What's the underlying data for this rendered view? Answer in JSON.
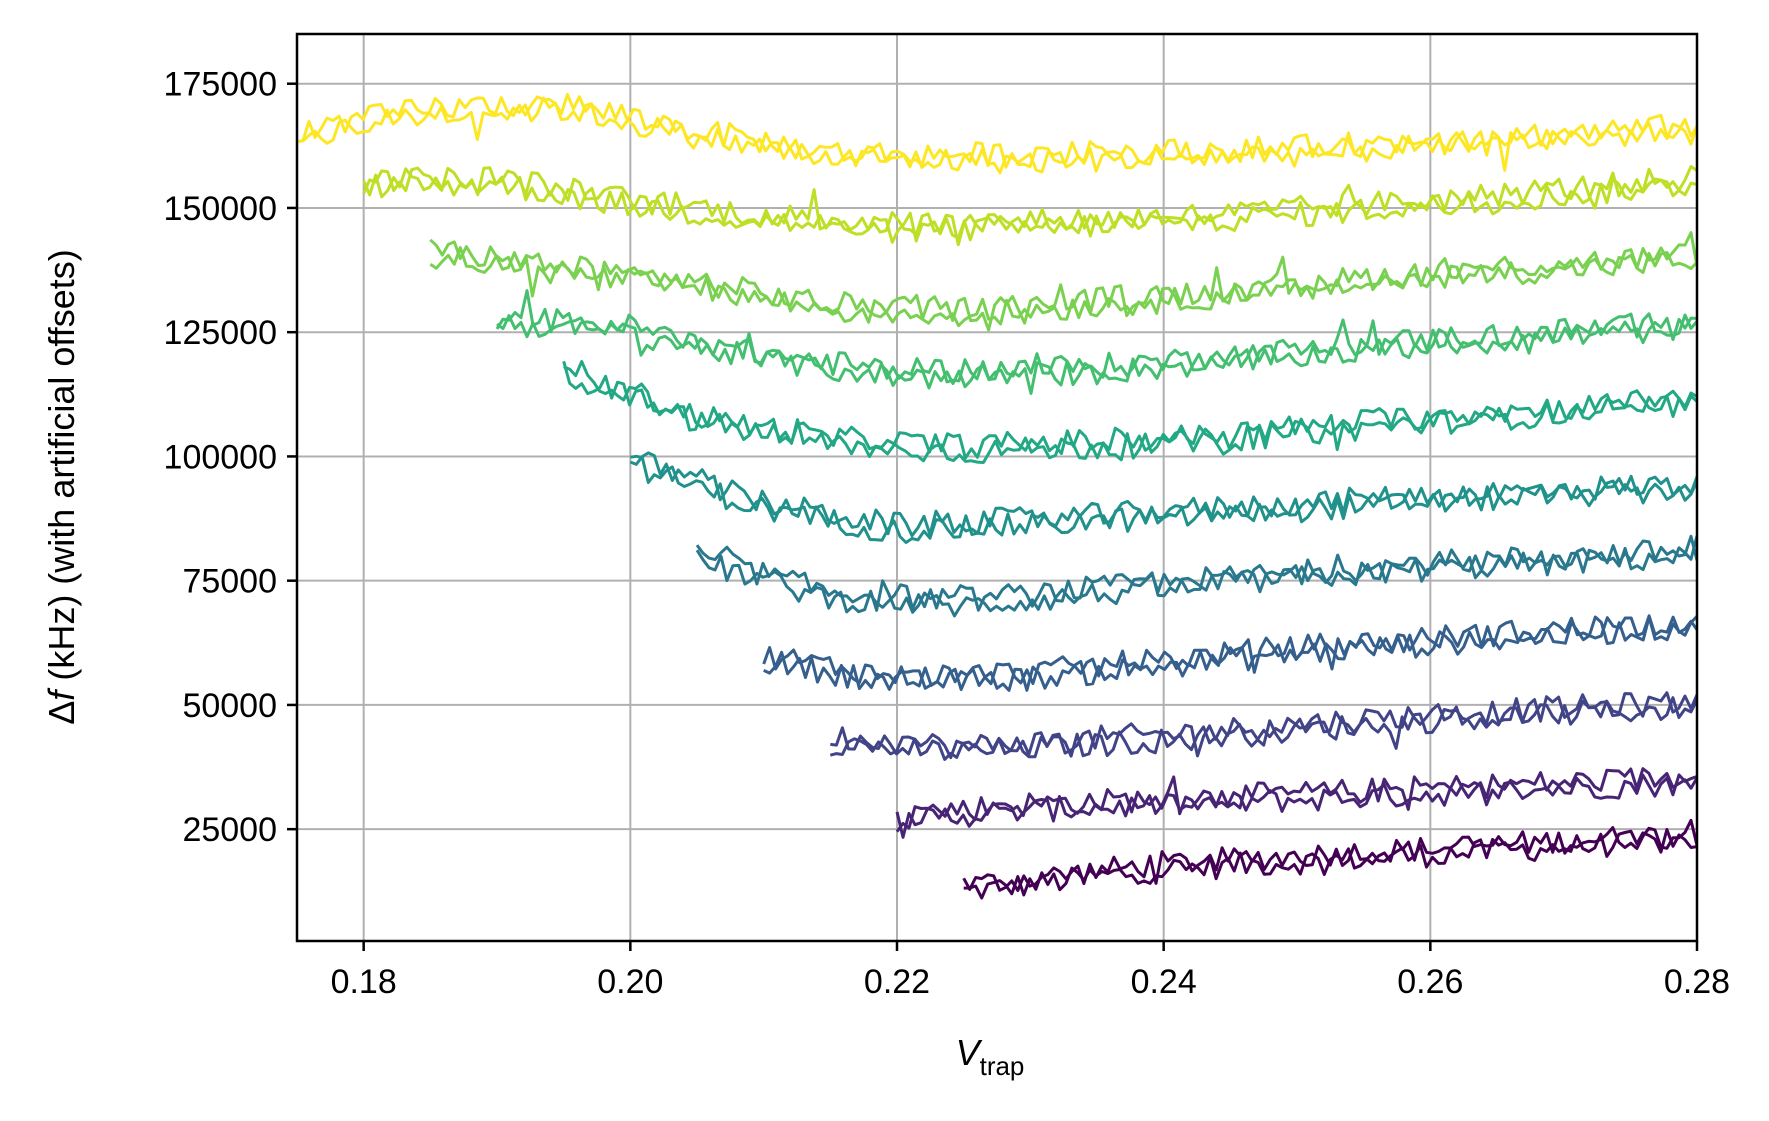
{
  "chart_data": {
    "type": "line",
    "xlabel_main": "V",
    "xlabel_sub": "trap",
    "ylabel_delta": "Δ",
    "ylabel_f": "f",
    "ylabel_rest": " (kHz) (with artificial offsets)",
    "xlim": [
      0.175,
      0.28
    ],
    "ylim": [
      2500,
      185000
    ],
    "x_ticks": [
      0.18,
      0.2,
      0.22,
      0.24,
      0.26,
      0.28
    ],
    "x_tick_labels": [
      "0.18",
      "0.20",
      "0.22",
      "0.24",
      "0.26",
      "0.28"
    ],
    "y_ticks": [
      25000,
      50000,
      75000,
      100000,
      125000,
      150000,
      175000
    ],
    "y_tick_labels": [
      "25000",
      "50000",
      "75000",
      "100000",
      "125000",
      "150000",
      "175000"
    ],
    "grid": true,
    "legend": "none",
    "noise_amplitude": 2500,
    "series": [
      {
        "color": "#440154",
        "x": [
          0.225,
          0.24,
          0.26,
          0.28
        ],
        "y": [
          13000,
          17500,
          20500,
          23500
        ]
      },
      {
        "color": "#482475",
        "x": [
          0.22,
          0.23,
          0.25,
          0.28
        ],
        "y": [
          27500,
          29500,
          31500,
          35000
        ]
      },
      {
        "color": "#414487",
        "x": [
          0.215,
          0.225,
          0.24,
          0.26,
          0.28
        ],
        "y": [
          43000,
          41000,
          43500,
          47500,
          50000
        ]
      },
      {
        "color": "#355f8d",
        "x": [
          0.21,
          0.22,
          0.23,
          0.25,
          0.28
        ],
        "y": [
          59500,
          55000,
          56000,
          61000,
          66500
        ]
      },
      {
        "color": "#2a788e",
        "x": [
          0.205,
          0.215,
          0.225,
          0.24,
          0.26,
          0.28
        ],
        "y": [
          79500,
          72000,
          70500,
          74000,
          78000,
          80500
        ]
      },
      {
        "color": "#21918c",
        "x": [
          0.2,
          0.21,
          0.22,
          0.235,
          0.26,
          0.28
        ],
        "y": [
          99000,
          90000,
          85500,
          87500,
          91500,
          94000
        ]
      },
      {
        "color": "#22a884",
        "x": [
          0.195,
          0.205,
          0.215,
          0.225,
          0.24,
          0.26,
          0.28
        ],
        "y": [
          117500,
          107500,
          103000,
          101500,
          103000,
          107500,
          111000
        ]
      },
      {
        "color": "#44bf70",
        "x": [
          0.19,
          0.2,
          0.21,
          0.22,
          0.235,
          0.26,
          0.28
        ],
        "y": [
          127500,
          125500,
          120000,
          116500,
          117500,
          123000,
          126500
        ]
      },
      {
        "color": "#7ad151",
        "x": [
          0.185,
          0.195,
          0.205,
          0.215,
          0.225,
          0.245,
          0.265,
          0.28
        ],
        "y": [
          141000,
          137500,
          134500,
          130000,
          129000,
          133000,
          137500,
          140000
        ]
      },
      {
        "color": "#bddf26",
        "x": [
          0.18,
          0.19,
          0.2,
          0.21,
          0.22,
          0.24,
          0.26,
          0.28
        ],
        "y": [
          155000,
          155500,
          151000,
          148000,
          146000,
          147500,
          151000,
          155500
        ]
      },
      {
        "color": "#fde725",
        "x": [
          0.175,
          0.185,
          0.195,
          0.205,
          0.215,
          0.23,
          0.25,
          0.27,
          0.28
        ],
        "y": [
          165000,
          169500,
          170500,
          165000,
          160500,
          160000,
          161500,
          164500,
          166000
        ]
      }
    ]
  }
}
